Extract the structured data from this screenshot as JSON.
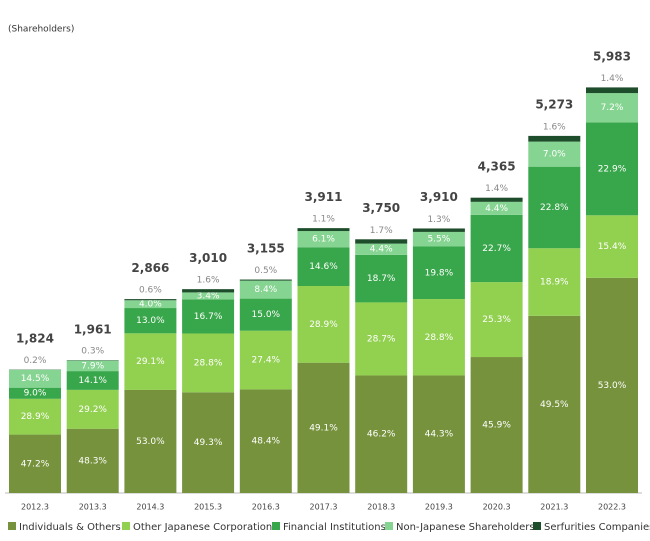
{
  "chart_data": {
    "type": "stacked-bar-percent",
    "subtitle": "(Shareholders)",
    "categories": [
      "2012.3",
      "2013.3",
      "2014.3",
      "2015.3",
      "2016.3",
      "2017.3",
      "2018.3",
      "2019.3",
      "2020.3",
      "2021.3",
      "2022.3"
    ],
    "totals": {
      "values": [
        1824,
        1961,
        2866,
        3010,
        3155,
        3911,
        3750,
        3910,
        4365,
        5273,
        5983
      ],
      "value_labels": [
        "1,824",
        "1,961",
        "2,866",
        "3,010",
        "3,155",
        "3,911",
        "3,750",
        "3,910",
        "4,365",
        "5,273",
        "5,983"
      ]
    },
    "series": [
      {
        "name": "Individuals & Others",
        "color": "#76923c",
        "values": [
          47.2,
          48.3,
          53.0,
          49.3,
          48.4,
          49.1,
          46.2,
          44.3,
          45.9,
          49.5,
          53.0
        ],
        "value_labels": [
          "47.2%",
          "48.3%",
          "53.0%",
          "49.3%",
          "48.4%",
          "49.1%",
          "46.2%",
          "44.3%",
          "45.9%",
          "49.5%",
          "53.0%"
        ]
      },
      {
        "name": "Other Japanese Corporation",
        "color": "#92d050",
        "values": [
          28.9,
          29.2,
          29.1,
          28.8,
          27.4,
          28.9,
          28.7,
          28.8,
          25.3,
          18.9,
          15.4
        ],
        "value_labels": [
          "28.9%",
          "29.2%",
          "29.1%",
          "28.8%",
          "27.4%",
          "28.9%",
          "28.7%",
          "28.8%",
          "25.3%",
          "18.9%",
          "15.4%"
        ]
      },
      {
        "name": "Financial Institutions",
        "color": "#38a64a",
        "values": [
          9.0,
          14.1,
          13.0,
          16.7,
          15.0,
          14.6,
          18.7,
          19.8,
          22.7,
          22.8,
          22.9
        ],
        "value_labels": [
          "9.0%",
          "14.1%",
          "13.0%",
          "16.7%",
          "15.0%",
          "14.6%",
          "18.7%",
          "19.8%",
          "22.7%",
          "22.8%",
          "22.9%"
        ]
      },
      {
        "name": "Non-Japanese Shareholders",
        "color": "#86d492",
        "values": [
          14.5,
          7.9,
          4.0,
          3.4,
          8.4,
          6.1,
          4.4,
          5.5,
          4.4,
          7.0,
          7.2
        ],
        "value_labels": [
          "14.5%",
          "7.9%",
          "4.0%",
          "3.4%",
          "8.4%",
          "6.1%",
          "4.4%",
          "5.5%",
          "4.4%",
          "7.0%",
          "7.2%"
        ]
      },
      {
        "name": "Serfurities Companies",
        "color": "#1e4d2b",
        "values": [
          0.2,
          0.3,
          0.6,
          1.6,
          0.5,
          1.1,
          1.7,
          1.3,
          1.4,
          1.6,
          1.4
        ],
        "value_labels": [
          "0.2%",
          "0.3%",
          "0.6%",
          "1.6%",
          "0.5%",
          "1.1%",
          "1.7%",
          "1.3%",
          "1.4%",
          "1.6%",
          "1.4%"
        ]
      }
    ]
  }
}
